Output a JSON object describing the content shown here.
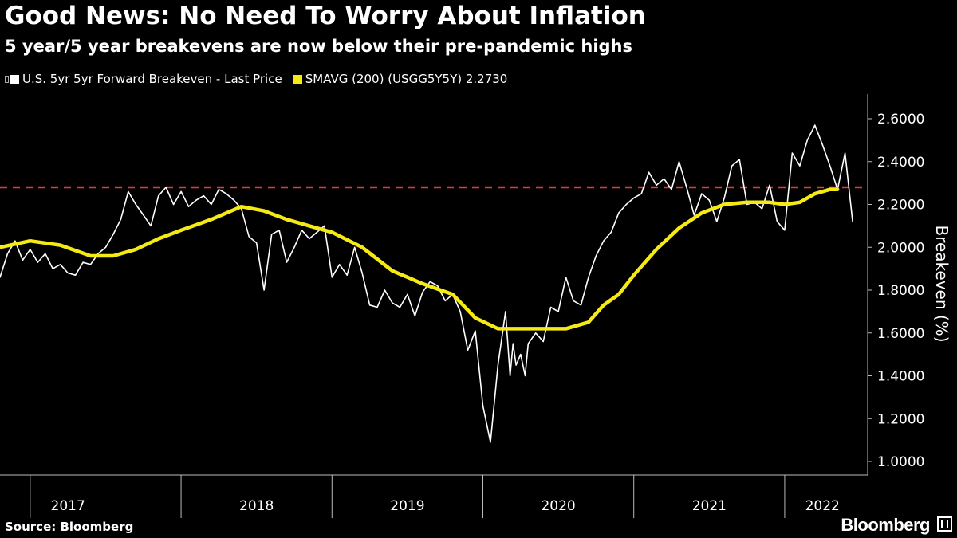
{
  "header": {
    "title": "Good News: No Need To Worry About Inflation",
    "subtitle": "5 year/5 year breakevens are now below their pre-pandemic highs"
  },
  "legend": {
    "series1": "U.S. 5yr 5yr Forward Breakeven - Last Price",
    "series2": "SMAVG (200) (USGG5Y5Y) 2.2730"
  },
  "footer": {
    "source": "Source: Bloomberg",
    "brand": "Bloomberg"
  },
  "colors": {
    "background": "#000000",
    "price_line": "#ffffff",
    "sma_line": "#f5ea14",
    "reference_line": "#e03c3c"
  },
  "chart_data": {
    "type": "line",
    "ylabel": "Breakeven (%)",
    "ylim": [
      1.0,
      2.6
    ],
    "yticks": [
      "2.6000",
      "2.4000",
      "2.2000",
      "2.0000",
      "1.8000",
      "1.6000",
      "1.4000",
      "1.2000",
      "1.0000"
    ],
    "ytick_values": [
      2.6,
      2.4,
      2.2,
      2.0,
      1.8,
      1.6,
      1.4,
      1.2,
      1.0
    ],
    "xlim": [
      2016.8,
      2022.55
    ],
    "x_year_labels": [
      {
        "label": "2017",
        "x": 2017.25
      },
      {
        "label": "2018",
        "x": 2018.5
      },
      {
        "label": "2019",
        "x": 2019.5
      },
      {
        "label": "2020",
        "x": 2020.5
      },
      {
        "label": "2021",
        "x": 2021.5
      },
      {
        "label": "2022",
        "x": 2022.25
      }
    ],
    "year_boundaries": [
      2017.0,
      2018.0,
      2019.0,
      2020.0,
      2021.0,
      2022.0
    ],
    "reference_line": {
      "y": 2.28,
      "style": "dashed"
    },
    "grid": false,
    "legend_placement": "top-left",
    "series": [
      {
        "name": "U.S. 5yr 5yr Forward Breakeven - Last Price",
        "x": [
          2016.8,
          2016.85,
          2016.9,
          2016.95,
          2017.0,
          2017.05,
          2017.1,
          2017.15,
          2017.2,
          2017.25,
          2017.3,
          2017.35,
          2017.4,
          2017.45,
          2017.5,
          2017.55,
          2017.6,
          2017.65,
          2017.7,
          2017.75,
          2017.8,
          2017.85,
          2017.9,
          2017.95,
          2018.0,
          2018.05,
          2018.1,
          2018.15,
          2018.2,
          2018.25,
          2018.3,
          2018.35,
          2018.4,
          2018.45,
          2018.5,
          2018.55,
          2018.6,
          2018.65,
          2018.7,
          2018.75,
          2018.8,
          2018.85,
          2018.9,
          2018.95,
          2019.0,
          2019.05,
          2019.1,
          2019.15,
          2019.2,
          2019.25,
          2019.3,
          2019.35,
          2019.4,
          2019.45,
          2019.5,
          2019.55,
          2019.6,
          2019.65,
          2019.7,
          2019.75,
          2019.8,
          2019.85,
          2019.9,
          2019.95,
          2020.0,
          2020.05,
          2020.1,
          2020.15,
          2020.18,
          2020.2,
          2020.22,
          2020.25,
          2020.28,
          2020.3,
          2020.35,
          2020.4,
          2020.45,
          2020.5,
          2020.55,
          2020.6,
          2020.65,
          2020.7,
          2020.75,
          2020.8,
          2020.85,
          2020.9,
          2020.95,
          2021.0,
          2021.05,
          2021.1,
          2021.15,
          2021.2,
          2021.25,
          2021.3,
          2021.35,
          2021.4,
          2021.45,
          2021.5,
          2021.55,
          2021.6,
          2021.65,
          2021.7,
          2021.75,
          2021.8,
          2021.85,
          2021.9,
          2021.95,
          2022.0,
          2022.05,
          2022.1,
          2022.15,
          2022.2,
          2022.25,
          2022.3,
          2022.35,
          2022.4,
          2022.45
        ],
        "y": [
          1.86,
          1.97,
          2.03,
          1.94,
          1.99,
          1.93,
          1.97,
          1.9,
          1.92,
          1.88,
          1.87,
          1.93,
          1.92,
          1.97,
          2.0,
          2.06,
          2.13,
          2.26,
          2.2,
          2.15,
          2.1,
          2.24,
          2.28,
          2.2,
          2.26,
          2.19,
          2.22,
          2.24,
          2.2,
          2.27,
          2.25,
          2.22,
          2.18,
          2.05,
          2.02,
          1.8,
          2.06,
          2.08,
          1.93,
          2.0,
          2.08,
          2.04,
          2.07,
          2.1,
          1.86,
          1.92,
          1.87,
          2.0,
          1.88,
          1.73,
          1.72,
          1.8,
          1.74,
          1.72,
          1.78,
          1.68,
          1.79,
          1.84,
          1.82,
          1.75,
          1.78,
          1.7,
          1.52,
          1.61,
          1.26,
          1.09,
          1.45,
          1.7,
          1.4,
          1.55,
          1.45,
          1.5,
          1.4,
          1.55,
          1.6,
          1.56,
          1.72,
          1.7,
          1.86,
          1.75,
          1.73,
          1.86,
          1.96,
          2.03,
          2.07,
          2.16,
          2.2,
          2.23,
          2.25,
          2.35,
          2.29,
          2.32,
          2.27,
          2.4,
          2.28,
          2.15,
          2.25,
          2.22,
          2.12,
          2.23,
          2.38,
          2.41,
          2.2,
          2.21,
          2.18,
          2.29,
          2.12,
          2.08,
          2.44,
          2.38,
          2.5,
          2.57,
          2.48,
          2.38,
          2.27,
          2.44,
          2.12
        ]
      },
      {
        "name": "SMAVG (200) (USGG5Y5Y) 2.2730",
        "x": [
          2016.8,
          2017.0,
          2017.2,
          2017.4,
          2017.55,
          2017.7,
          2017.85,
          2018.0,
          2018.2,
          2018.4,
          2018.55,
          2018.7,
          2018.85,
          2019.0,
          2019.2,
          2019.4,
          2019.6,
          2019.8,
          2019.95,
          2020.1,
          2020.25,
          2020.4,
          2020.55,
          2020.7,
          2020.8,
          2020.9,
          2021.0,
          2021.15,
          2021.3,
          2021.45,
          2021.6,
          2021.75,
          2021.9,
          2022.0,
          2022.1,
          2022.2,
          2022.3,
          2022.35
        ],
        "y": [
          2.0,
          2.03,
          2.01,
          1.96,
          1.96,
          1.99,
          2.04,
          2.08,
          2.13,
          2.19,
          2.17,
          2.13,
          2.1,
          2.07,
          2.0,
          1.89,
          1.83,
          1.78,
          1.67,
          1.62,
          1.62,
          1.62,
          1.62,
          1.65,
          1.73,
          1.78,
          1.87,
          1.99,
          2.09,
          2.16,
          2.2,
          2.21,
          2.21,
          2.2,
          2.21,
          2.25,
          2.27,
          2.27
        ]
      }
    ]
  }
}
